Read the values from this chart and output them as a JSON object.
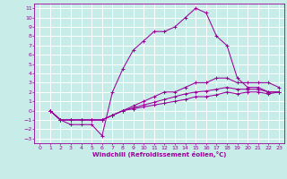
{
  "xlabel": "Windchill (Refroidissement éolien,°C)",
  "background_color": "#c8ece8",
  "grid_color": "#ffffff",
  "line_color": "#990099",
  "xlim": [
    -0.5,
    23.5
  ],
  "ylim": [
    -3.5,
    11.5
  ],
  "xticks": [
    0,
    1,
    2,
    3,
    4,
    5,
    6,
    7,
    8,
    9,
    10,
    11,
    12,
    13,
    14,
    15,
    16,
    17,
    18,
    19,
    20,
    21,
    22,
    23
  ],
  "yticks": [
    -3,
    -2,
    -1,
    0,
    1,
    2,
    3,
    4,
    5,
    6,
    7,
    8,
    9,
    10,
    11
  ],
  "lines": [
    {
      "x": [
        1,
        2,
        3,
        4,
        5,
        6,
        7,
        8,
        9,
        10,
        11,
        12,
        13,
        14,
        15,
        16,
        17,
        18,
        19,
        20,
        21,
        22,
        23
      ],
      "y": [
        0,
        -1,
        -1.5,
        -1.5,
        -1.5,
        -2.7,
        2,
        4.5,
        6.5,
        7.5,
        8.5,
        8.5,
        9,
        10,
        11,
        10.5,
        8,
        7,
        3.5,
        2.5,
        2.5,
        2,
        2
      ]
    },
    {
      "x": [
        1,
        2,
        3,
        4,
        5,
        6,
        7,
        8,
        9,
        10,
        11,
        12,
        13,
        14,
        15,
        16,
        17,
        18,
        19,
        20,
        21,
        22,
        23
      ],
      "y": [
        0,
        -1,
        -1,
        -1,
        -1,
        -1,
        -0.5,
        0,
        0.5,
        1,
        1.5,
        2,
        2,
        2.5,
        3,
        3,
        3.5,
        3.5,
        3,
        3,
        3,
        3,
        2.5
      ]
    },
    {
      "x": [
        1,
        2,
        3,
        4,
        5,
        6,
        7,
        8,
        9,
        10,
        11,
        12,
        13,
        14,
        15,
        16,
        17,
        18,
        19,
        20,
        21,
        22,
        23
      ],
      "y": [
        0,
        -1,
        -1,
        -1,
        -1,
        -1,
        -0.5,
        0,
        0.3,
        0.6,
        0.9,
        1.2,
        1.5,
        1.8,
        2,
        2.1,
        2.3,
        2.5,
        2.3,
        2.3,
        2.3,
        2,
        2
      ]
    },
    {
      "x": [
        1,
        2,
        3,
        4,
        5,
        6,
        7,
        8,
        9,
        10,
        11,
        12,
        13,
        14,
        15,
        16,
        17,
        18,
        19,
        20,
        21,
        22,
        23
      ],
      "y": [
        0,
        -1,
        -1,
        -1,
        -1,
        -1,
        -0.5,
        0,
        0.2,
        0.4,
        0.6,
        0.8,
        1,
        1.2,
        1.5,
        1.5,
        1.7,
        2.0,
        1.8,
        2,
        2,
        1.8,
        2
      ]
    }
  ]
}
